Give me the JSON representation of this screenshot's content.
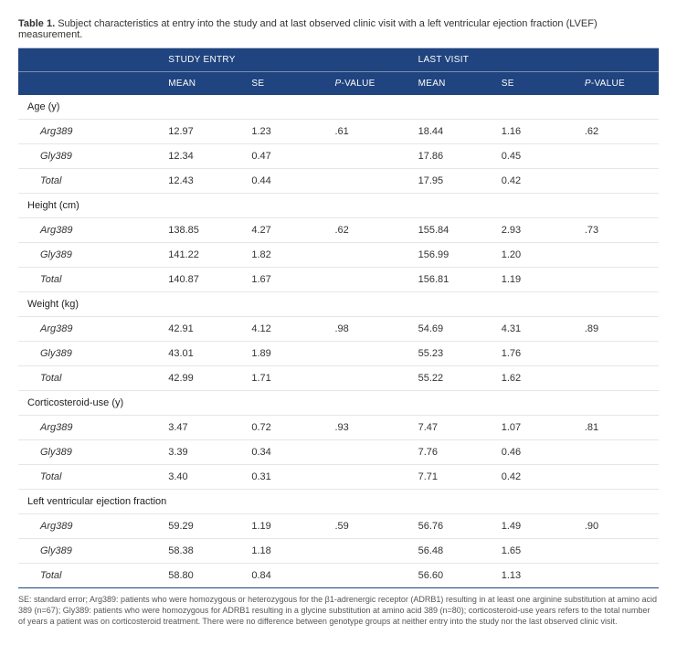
{
  "caption": {
    "label": "Table 1.",
    "text": "Subject characteristics at entry into the study and at last observed clinic visit with a left ventricular ejection fraction (LVEF) measurement."
  },
  "header": {
    "top": {
      "entry": "STUDY ENTRY",
      "last": "LAST VISIT"
    },
    "sub": {
      "mean": "MEAN",
      "se": "SE",
      "pvalue": "P-VALUE"
    }
  },
  "groups": [
    {
      "label": "Age (y)",
      "rows": [
        {
          "label": "Arg389",
          "entry_mean": "12.97",
          "entry_se": "1.23",
          "entry_p": ".61",
          "last_mean": "18.44",
          "last_se": "1.16",
          "last_p": ".62"
        },
        {
          "label": "Gly389",
          "entry_mean": "12.34",
          "entry_se": "0.47",
          "entry_p": "",
          "last_mean": "17.86",
          "last_se": "0.45",
          "last_p": ""
        },
        {
          "label": "Total",
          "entry_mean": "12.43",
          "entry_se": "0.44",
          "entry_p": "",
          "last_mean": "17.95",
          "last_se": "0.42",
          "last_p": ""
        }
      ]
    },
    {
      "label": "Height (cm)",
      "rows": [
        {
          "label": "Arg389",
          "entry_mean": "138.85",
          "entry_se": "4.27",
          "entry_p": ".62",
          "last_mean": "155.84",
          "last_se": "2.93",
          "last_p": ".73"
        },
        {
          "label": "Gly389",
          "entry_mean": "141.22",
          "entry_se": "1.82",
          "entry_p": "",
          "last_mean": "156.99",
          "last_se": "1.20",
          "last_p": ""
        },
        {
          "label": "Total",
          "entry_mean": "140.87",
          "entry_se": "1.67",
          "entry_p": "",
          "last_mean": "156.81",
          "last_se": "1.19",
          "last_p": ""
        }
      ]
    },
    {
      "label": "Weight (kg)",
      "rows": [
        {
          "label": "Arg389",
          "entry_mean": "42.91",
          "entry_se": "4.12",
          "entry_p": ".98",
          "last_mean": "54.69",
          "last_se": "4.31",
          "last_p": ".89"
        },
        {
          "label": "Gly389",
          "entry_mean": "43.01",
          "entry_se": "1.89",
          "entry_p": "",
          "last_mean": "55.23",
          "last_se": "1.76",
          "last_p": ""
        },
        {
          "label": "Total",
          "entry_mean": "42.99",
          "entry_se": "1.71",
          "entry_p": "",
          "last_mean": "55.22",
          "last_se": "1.62",
          "last_p": ""
        }
      ]
    },
    {
      "label": "Corticosteroid-use (y)",
      "rows": [
        {
          "label": "Arg389",
          "entry_mean": "3.47",
          "entry_se": "0.72",
          "entry_p": ".93",
          "last_mean": "7.47",
          "last_se": "1.07",
          "last_p": ".81"
        },
        {
          "label": "Gly389",
          "entry_mean": "3.39",
          "entry_se": "0.34",
          "entry_p": "",
          "last_mean": "7.76",
          "last_se": "0.46",
          "last_p": ""
        },
        {
          "label": "Total",
          "entry_mean": "3.40",
          "entry_se": "0.31",
          "entry_p": "",
          "last_mean": "7.71",
          "last_se": "0.42",
          "last_p": ""
        }
      ]
    },
    {
      "label": "Left ventricular ejection fraction",
      "rows": [
        {
          "label": "Arg389",
          "entry_mean": "59.29",
          "entry_se": "1.19",
          "entry_p": ".59",
          "last_mean": "56.76",
          "last_se": "1.49",
          "last_p": ".90"
        },
        {
          "label": "Gly389",
          "entry_mean": "58.38",
          "entry_se": "1.18",
          "entry_p": "",
          "last_mean": "56.48",
          "last_se": "1.65",
          "last_p": ""
        },
        {
          "label": "Total",
          "entry_mean": "58.80",
          "entry_se": "0.84",
          "entry_p": "",
          "last_mean": "56.60",
          "last_se": "1.13",
          "last_p": ""
        }
      ]
    }
  ],
  "footnote": "SE: standard error; Arg389: patients who were homozygous or heterozygous for the β1-adrenergic receptor (ADRB1) resulting in at least one arginine substitution at amino acid 389 (n=67); Gly389: patients who were homozygous for ADRB1 resulting in a glycine substitution at amino acid 389 (n=80); corticosteroid-use years refers to the total number of years a patient was on corticosteroid treatment. There were no difference between genotype groups at neither entry into the study nor the last observed clinic visit.",
  "colors": {
    "header_bg": "#20447f",
    "header_text": "#ffffff",
    "row_border": "#e6e6e6",
    "top_rule": "#b8c6dd",
    "text": "#333333"
  }
}
